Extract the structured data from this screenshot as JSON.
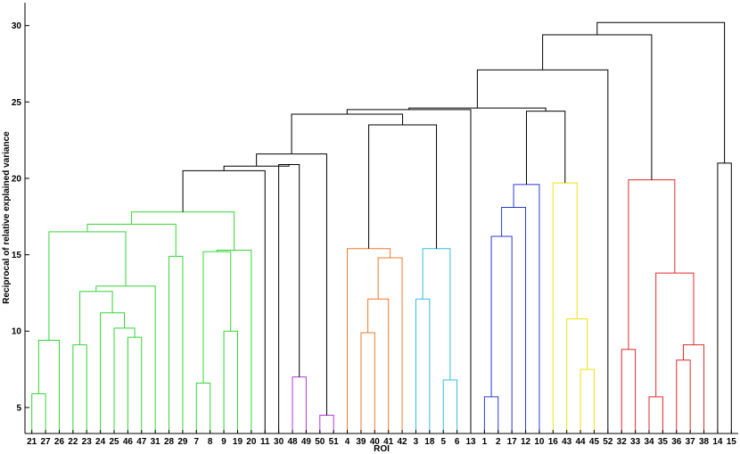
{
  "chart_data": {
    "type": "dendrogram",
    "title": "",
    "xlabel": "ROI",
    "ylabel": "Reciprocal of relative explained variance",
    "ylim": [
      3.3,
      31.5
    ],
    "yticks": [
      5,
      10,
      15,
      20,
      25,
      30
    ],
    "ytick_labels": [
      "5",
      "10",
      "15",
      "20",
      "25",
      "30"
    ],
    "grid": false,
    "leaf_order": [
      "21",
      "27",
      "26",
      "22",
      "23",
      "24",
      "25",
      "46",
      "47",
      "31",
      "28",
      "29",
      "7",
      "8",
      "9",
      "19",
      "20",
      "11",
      "30",
      "48",
      "49",
      "50",
      "51",
      "4",
      "39",
      "40",
      "41",
      "42",
      "3",
      "18",
      "5",
      "6",
      "13",
      "1",
      "2",
      "17",
      "12",
      "10",
      "16",
      "43",
      "44",
      "45",
      "52",
      "32",
      "33",
      "34",
      "35",
      "36",
      "37",
      "38",
      "14",
      "15"
    ],
    "colors": {
      "green": "#33d633",
      "black": "#000000",
      "purple": "#b03ad9",
      "orange": "#f07a2a",
      "cyan": "#33bde0",
      "blue": "#2a3ad9",
      "yellow": "#f0e20a",
      "red": "#e02a2a"
    },
    "merges": [
      {
        "a": "L:21",
        "b": "L:27",
        "h": 5.9,
        "c": "green"
      },
      {
        "a": "M:0",
        "b": "L:26",
        "h": 9.4,
        "c": "green"
      },
      {
        "a": "L:46",
        "b": "L:47",
        "h": 9.6,
        "c": "green"
      },
      {
        "a": "L:25",
        "b": "M:2",
        "h": 10.2,
        "c": "green"
      },
      {
        "a": "L:24",
        "b": "M:3",
        "h": 11.2,
        "c": "green"
      },
      {
        "a": "L:22",
        "b": "L:23",
        "h": 9.1,
        "c": "green"
      },
      {
        "a": "M:5",
        "b": "M:4",
        "h": 12.6,
        "c": "green"
      },
      {
        "a": "M:6",
        "b": "L:31",
        "h": 12.95,
        "c": "green"
      },
      {
        "a": "M:1",
        "b": "M:7",
        "h": 16.5,
        "c": "green"
      },
      {
        "a": "L:28",
        "b": "L:29",
        "h": 14.9,
        "c": "green"
      },
      {
        "a": "M:8",
        "b": "M:9",
        "h": 17.0,
        "c": "green"
      },
      {
        "a": "L:7",
        "b": "L:8",
        "h": 6.6,
        "c": "green"
      },
      {
        "a": "L:9",
        "b": "L:19",
        "h": 10.0,
        "c": "green"
      },
      {
        "a": "M:11",
        "b": "M:12",
        "h": 15.2,
        "c": "green"
      },
      {
        "a": "M:13",
        "b": "L:20",
        "h": 15.3,
        "c": "green"
      },
      {
        "a": "M:10",
        "b": "M:14",
        "h": 17.8,
        "c": "green"
      },
      {
        "a": "M:15",
        "b": "L:11",
        "h": 20.5,
        "c": "black"
      },
      {
        "a": "L:48",
        "b": "L:49",
        "h": 7.0,
        "c": "purple"
      },
      {
        "a": "L:30",
        "b": "M:17",
        "h": 20.9,
        "c": "black"
      },
      {
        "a": "M:16",
        "b": "M:18",
        "h": 20.8,
        "c": "black"
      },
      {
        "a": "L:50",
        "b": "L:51",
        "h": 4.5,
        "c": "purple"
      },
      {
        "a": "M:19",
        "b": "M:20",
        "h": 21.6,
        "c": "black"
      },
      {
        "a": "L:39",
        "b": "L:40",
        "h": 9.9,
        "c": "orange"
      },
      {
        "a": "M:22",
        "b": "L:41",
        "h": 12.1,
        "c": "orange"
      },
      {
        "a": "M:23",
        "b": "L:42",
        "h": 14.8,
        "c": "orange"
      },
      {
        "a": "L:4",
        "b": "M:24",
        "h": 15.4,
        "c": "orange"
      },
      {
        "a": "L:5",
        "b": "L:6",
        "h": 6.8,
        "c": "cyan"
      },
      {
        "a": "L:3",
        "b": "L:18",
        "h": 12.1,
        "c": "cyan"
      },
      {
        "a": "M:27",
        "b": "M:26",
        "h": 15.4,
        "c": "cyan"
      },
      {
        "a": "M:25",
        "b": "M:28",
        "h": 23.5,
        "c": "black"
      },
      {
        "a": "M:21",
        "b": "M:29",
        "h": 24.2,
        "c": "black"
      },
      {
        "a": "M:30",
        "b": "L:13",
        "h": 24.5,
        "c": "black"
      },
      {
        "a": "L:1",
        "b": "L:2",
        "h": 5.7,
        "c": "blue"
      },
      {
        "a": "M:32",
        "b": "L:17",
        "h": 16.2,
        "c": "blue"
      },
      {
        "a": "M:33",
        "b": "L:12",
        "h": 18.1,
        "c": "blue"
      },
      {
        "a": "M:34",
        "b": "L:10",
        "h": 19.6,
        "c": "blue"
      },
      {
        "a": "L:44",
        "b": "L:45",
        "h": 7.5,
        "c": "yellow"
      },
      {
        "a": "L:43",
        "b": "M:36",
        "h": 10.8,
        "c": "yellow"
      },
      {
        "a": "L:16",
        "b": "M:37",
        "h": 19.7,
        "c": "yellow"
      },
      {
        "a": "M:35",
        "b": "M:38",
        "h": 24.4,
        "c": "black"
      },
      {
        "a": "M:31",
        "b": "M:39",
        "h": 24.6,
        "c": "black"
      },
      {
        "a": "M:40",
        "b": "L:52",
        "h": 27.1,
        "c": "black"
      },
      {
        "a": "L:32",
        "b": "L:33",
        "h": 8.8,
        "c": "red"
      },
      {
        "a": "L:34",
        "b": "L:35",
        "h": 5.7,
        "c": "red"
      },
      {
        "a": "L:36",
        "b": "L:37",
        "h": 8.1,
        "c": "red"
      },
      {
        "a": "M:44",
        "b": "L:38",
        "h": 9.1,
        "c": "red"
      },
      {
        "a": "M:43",
        "b": "M:45",
        "h": 13.8,
        "c": "red"
      },
      {
        "a": "M:42",
        "b": "M:46",
        "h": 19.9,
        "c": "red"
      },
      {
        "a": "M:41",
        "b": "M:47",
        "h": 29.4,
        "c": "black"
      },
      {
        "a": "L:14",
        "b": "L:15",
        "h": 21.0,
        "c": "black"
      },
      {
        "a": "M:48",
        "b": "M:49",
        "h": 30.2,
        "c": "black"
      }
    ]
  }
}
